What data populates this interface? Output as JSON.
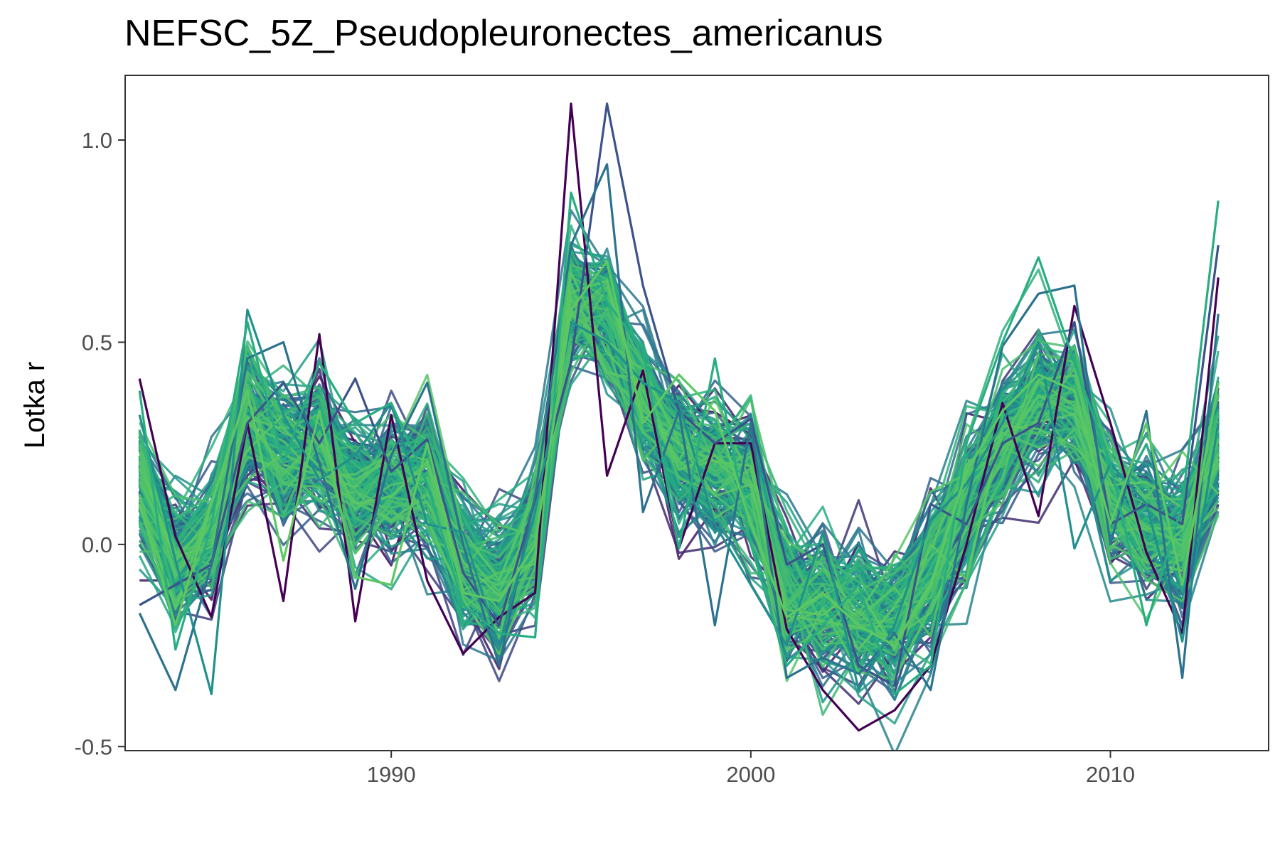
{
  "chart_data": {
    "type": "line",
    "title": "NEFSC_5Z_Pseudopleuronectes_americanus",
    "xlabel": "",
    "ylabel": "Lotka r",
    "xlim": [
      1982.6,
      2014.4
    ],
    "ylim": [
      -0.51,
      1.16
    ],
    "x_ticks": [
      1990,
      2000,
      2010
    ],
    "x_tick_labels": [
      "1990",
      "2000",
      "2010"
    ],
    "y_ticks": [
      -0.5,
      0.0,
      0.5,
      1.0
    ],
    "y_tick_labels": [
      "-0.5",
      "0.0",
      "0.5",
      "1.0"
    ],
    "grid": false,
    "legend": "none",
    "colors": {
      "panel_border": "#333333",
      "axis_tick": "#333333",
      "palette": [
        "#440154",
        "#3b528b",
        "#2c728e",
        "#21908d",
        "#27ad81",
        "#5dc863"
      ]
    },
    "x": [
      1983,
      1984,
      1985,
      1986,
      1987,
      1988,
      1989,
      1990,
      1991,
      1992,
      1993,
      1994,
      1995,
      1996,
      1997,
      1998,
      1999,
      2000,
      2001,
      2002,
      2003,
      2004,
      2005,
      2006,
      2007,
      2008,
      2009,
      2010,
      2011,
      2012,
      2013
    ],
    "central_trend": [
      0.15,
      -0.05,
      0.02,
      0.3,
      0.22,
      0.25,
      0.12,
      0.15,
      0.16,
      -0.05,
      -0.12,
      0.02,
      0.6,
      0.55,
      0.35,
      0.22,
      0.18,
      0.15,
      -0.12,
      -0.15,
      -0.18,
      -0.2,
      -0.08,
      0.1,
      0.25,
      0.35,
      0.35,
      0.1,
      0.05,
      0.0,
      0.25
    ],
    "series": [
      {
        "values": [
          0.41,
          0.02,
          -0.18,
          0.3,
          -0.14,
          0.52,
          -0.19,
          0.32,
          -0.09,
          -0.27,
          -0.18,
          -0.12,
          1.09,
          0.17,
          0.43,
          -0.01,
          0.25,
          0.25,
          -0.21,
          -0.36,
          -0.46,
          -0.41,
          -0.3,
          0.0,
          0.35,
          0.07,
          0.59,
          0.3,
          -0.02,
          -0.22,
          0.66
        ]
      },
      {
        "values": [
          -0.15,
          -0.1,
          -0.05,
          0.3,
          0.4,
          0.25,
          0.41,
          0.18,
          0.26,
          -0.07,
          -0.2,
          0.11,
          0.45,
          1.09,
          0.64,
          0.33,
          0.25,
          0.31,
          -0.05,
          0.0,
          -0.3,
          -0.35,
          0.1,
          0.05,
          0.25,
          0.3,
          0.55,
          0.05,
          0.1,
          0.05,
          0.74
        ]
      },
      {
        "values": [
          -0.17,
          -0.36,
          -0.05,
          0.46,
          0.5,
          0.2,
          -0.11,
          0.22,
          0.4,
          0.0,
          -0.3,
          0.12,
          0.74,
          0.94,
          0.08,
          0.33,
          -0.2,
          0.3,
          -0.33,
          -0.28,
          -0.32,
          -0.22,
          -0.36,
          0.1,
          0.49,
          0.62,
          0.64,
          0.0,
          0.33,
          -0.33,
          0.57
        ]
      },
      {
        "values": [
          0.32,
          -0.04,
          -0.37,
          0.58,
          0.32,
          0.16,
          0.22,
          0.35,
          0.05,
          0.03,
          -0.25,
          0.08,
          0.55,
          0.5,
          0.4,
          0.35,
          0.05,
          -0.1,
          -0.25,
          0.03,
          -0.36,
          -0.2,
          0.06,
          0.15,
          0.3,
          0.5,
          -0.01,
          0.2,
          0.1,
          -0.24,
          0.3
        ]
      },
      {
        "values": [
          0.38,
          -0.26,
          0.05,
          0.55,
          0.2,
          0.45,
          0.3,
          0.35,
          0.15,
          -0.15,
          -0.22,
          -0.23,
          0.87,
          0.6,
          0.48,
          -0.01,
          0.46,
          0.0,
          -0.3,
          -0.2,
          -0.1,
          -0.37,
          -0.3,
          0.25,
          0.5,
          0.71,
          0.45,
          0.2,
          -0.2,
          0.1,
          0.85
        ]
      },
      {
        "values": [
          0.1,
          -0.2,
          0.1,
          0.38,
          -0.04,
          0.33,
          -0.08,
          -0.1,
          0.25,
          -0.12,
          -0.14,
          0.0,
          0.58,
          0.7,
          0.3,
          0.42,
          0.33,
          0.05,
          -0.18,
          -0.12,
          -0.2,
          -0.25,
          -0.1,
          0.18,
          0.33,
          0.42,
          0.38,
          0.05,
          0.3,
          -0.1,
          0.4
        ]
      }
    ]
  }
}
